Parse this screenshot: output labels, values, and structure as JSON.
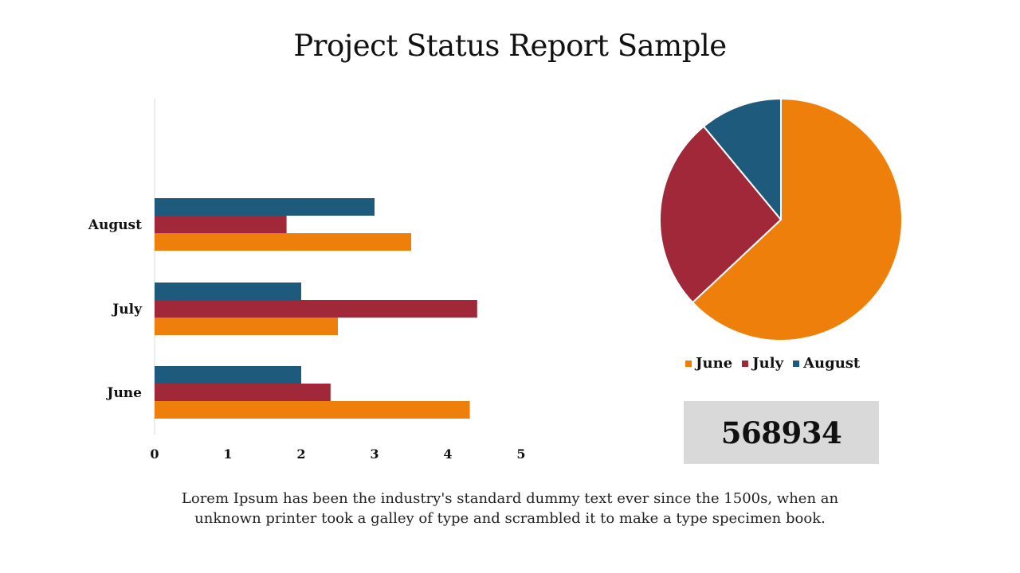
{
  "page": {
    "title": "Project Status Report Sample",
    "kpi_value": "568934",
    "description": "Lorem Ipsum has been the industry's standard dummy text ever since the 1500s, when an unknown printer took a galley of type and scrambled it to make a type specimen book."
  },
  "colors": {
    "June": "#ef7f0b",
    "July": "#a02838",
    "August": "#1e5a7b",
    "kpi_background": "#d9d9d9"
  },
  "chart_data": [
    {
      "type": "bar",
      "orientation": "horizontal",
      "categories": [
        "June",
        "July",
        "August"
      ],
      "series": [
        {
          "name": "June",
          "values": [
            4.3,
            2.5,
            3.5
          ]
        },
        {
          "name": "July",
          "values": [
            2.4,
            4.4,
            1.8
          ]
        },
        {
          "name": "August",
          "values": [
            2.0,
            2.0,
            3.0
          ]
        }
      ],
      "x_ticks": [
        "0",
        "1",
        "2",
        "3",
        "4",
        "5"
      ],
      "xlim": [
        0,
        5
      ],
      "grid": false,
      "legend": "none"
    },
    {
      "type": "pie",
      "labels": [
        "June",
        "July",
        "August"
      ],
      "values": [
        63,
        26,
        11
      ],
      "start": "top, clockwise",
      "legend": "bottom",
      "legend_entries": [
        "June",
        "July",
        "August"
      ]
    }
  ]
}
